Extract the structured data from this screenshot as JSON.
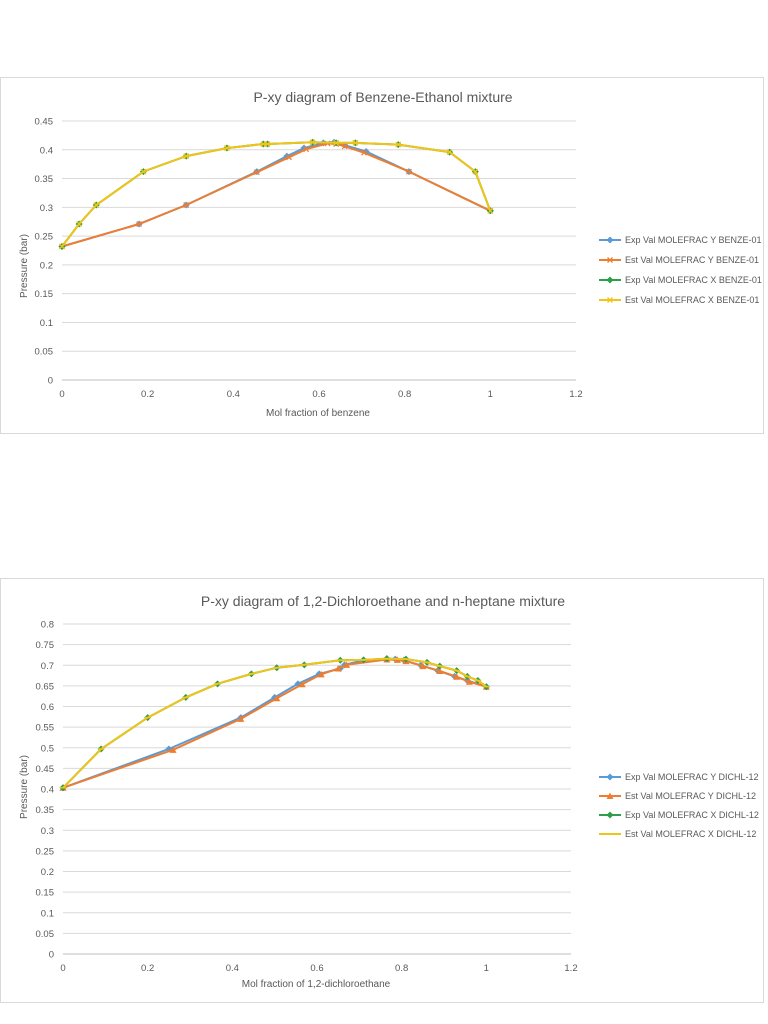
{
  "chart_data": [
    {
      "type": "line",
      "title": "P-xy diagram of Benzene-Ethanol mixture",
      "xlabel": "Mol fraction of benzene",
      "ylabel": "Pressure (bar)",
      "xlim": [
        0,
        1.2
      ],
      "ylim": [
        0,
        0.45
      ],
      "xticks": [
        "0",
        "0.2",
        "0.4",
        "0.6",
        "0.8",
        "1",
        "1.2"
      ],
      "yticks": [
        "0",
        "0.05",
        "0.1",
        "0.15",
        "0.2",
        "0.25",
        "0.3",
        "0.35",
        "0.4",
        "0.45"
      ],
      "grid": true,
      "legend_position": "right",
      "series": [
        {
          "name": "Exp Val MOLEFRAC Y BENZE-01",
          "color": "#5b9bd5",
          "marker": "diamond",
          "x": [
            0,
            0.18,
            0.29,
            0.455,
            0.525,
            0.565,
            0.61,
            0.635,
            0.66,
            0.71,
            0.81,
            1.0
          ],
          "y": [
            0.232,
            0.271,
            0.304,
            0.362,
            0.389,
            0.403,
            0.412,
            0.413,
            0.408,
            0.397,
            0.362,
            0.294
          ]
        },
        {
          "name": "Est Val MOLEFRAC Y BENZE-01",
          "color": "#ed7d31",
          "marker": "x",
          "x": [
            0,
            0.18,
            0.29,
            0.455,
            0.53,
            0.57,
            0.62,
            0.64,
            0.66,
            0.705,
            0.81,
            1.0
          ],
          "y": [
            0.232,
            0.271,
            0.304,
            0.361,
            0.387,
            0.401,
            0.411,
            0.41,
            0.406,
            0.395,
            0.362,
            0.294
          ]
        },
        {
          "name": "Exp Val MOLEFRAC X BENZE-01",
          "color": "#2e9e48",
          "marker": "diamond",
          "x": [
            0,
            0.04,
            0.08,
            0.19,
            0.29,
            0.385,
            0.47,
            0.48,
            0.585,
            0.64,
            0.685,
            0.785,
            0.905,
            0.965,
            1.0
          ],
          "y": [
            0.232,
            0.271,
            0.304,
            0.362,
            0.389,
            0.403,
            0.41,
            0.41,
            0.413,
            0.412,
            0.412,
            0.409,
            0.396,
            0.362,
            0.294
          ]
        },
        {
          "name": "Est Val MOLEFRAC X BENZE-01",
          "color": "#f0c419",
          "marker": "x",
          "x": [
            0,
            0.04,
            0.08,
            0.19,
            0.29,
            0.385,
            0.47,
            0.48,
            0.585,
            0.64,
            0.685,
            0.785,
            0.905,
            0.965,
            1.0
          ],
          "y": [
            0.232,
            0.271,
            0.304,
            0.362,
            0.389,
            0.403,
            0.41,
            0.41,
            0.413,
            0.412,
            0.412,
            0.409,
            0.396,
            0.362,
            0.294
          ]
        }
      ]
    },
    {
      "type": "line",
      "title": "P-xy diagram of 1,2-Dichloroethane and n-heptane mixture",
      "xlabel": "Mol fraction of 1,2-dichloroethane",
      "ylabel": "Pressure (bar)",
      "xlim": [
        0,
        1.2
      ],
      "ylim": [
        0,
        0.8
      ],
      "xticks": [
        "0",
        "0.2",
        "0.4",
        "0.6",
        "0.8",
        "1",
        "1.2"
      ],
      "yticks": [
        "0",
        "0.05",
        "0.1",
        "0.15",
        "0.2",
        "0.25",
        "0.3",
        "0.35",
        "0.4",
        "0.45",
        "0.5",
        "0.55",
        "0.6",
        "0.65",
        "0.7",
        "0.75",
        "0.8"
      ],
      "grid": true,
      "legend_position": "right",
      "series": [
        {
          "name": "Exp Val MOLEFRAC Y DICHL-12",
          "color": "#5b9bd5",
          "marker": "diamond",
          "x": [
            0,
            0.25,
            0.42,
            0.5,
            0.555,
            0.605,
            0.655,
            0.665,
            0.71,
            0.765,
            0.785,
            0.805,
            0.845,
            0.885,
            0.925,
            0.955,
            1.0
          ],
          "y": [
            0.403,
            0.497,
            0.573,
            0.622,
            0.655,
            0.679,
            0.692,
            0.701,
            0.712,
            0.716,
            0.715,
            0.712,
            0.7,
            0.687,
            0.673,
            0.663,
            0.648
          ]
        },
        {
          "name": "Est Val MOLEFRAC Y DICHL-12",
          "color": "#ed7d31",
          "marker": "triangle",
          "x": [
            0,
            0.26,
            0.42,
            0.505,
            0.565,
            0.61,
            0.65,
            0.67,
            0.765,
            0.79,
            0.81,
            0.85,
            0.89,
            0.93,
            0.96,
            1.0
          ],
          "y": [
            0.403,
            0.495,
            0.57,
            0.62,
            0.654,
            0.678,
            0.692,
            0.701,
            0.714,
            0.713,
            0.71,
            0.698,
            0.686,
            0.672,
            0.66,
            0.648
          ]
        },
        {
          "name": "Exp Val MOLEFRAC X DICHL-12",
          "color": "#2e9e48",
          "marker": "diamond",
          "x": [
            0,
            0.09,
            0.2,
            0.29,
            0.365,
            0.445,
            0.505,
            0.57,
            0.655,
            0.71,
            0.765,
            0.81,
            0.86,
            0.89,
            0.93,
            0.955,
            0.98,
            1.0
          ],
          "y": [
            0.403,
            0.497,
            0.573,
            0.622,
            0.655,
            0.679,
            0.694,
            0.701,
            0.712,
            0.713,
            0.716,
            0.715,
            0.707,
            0.698,
            0.687,
            0.673,
            0.663,
            0.648
          ]
        },
        {
          "name": "Est Val MOLEFRAC X DICHL-12",
          "color": "#f0c419",
          "marker": "dash",
          "x": [
            0,
            0.09,
            0.2,
            0.29,
            0.365,
            0.445,
            0.505,
            0.57,
            0.655,
            0.71,
            0.765,
            0.81,
            0.86,
            0.89,
            0.93,
            0.955,
            0.98,
            1.0
          ],
          "y": [
            0.403,
            0.497,
            0.573,
            0.622,
            0.655,
            0.679,
            0.694,
            0.701,
            0.712,
            0.713,
            0.716,
            0.715,
            0.707,
            0.698,
            0.687,
            0.673,
            0.663,
            0.648
          ]
        }
      ]
    }
  ]
}
